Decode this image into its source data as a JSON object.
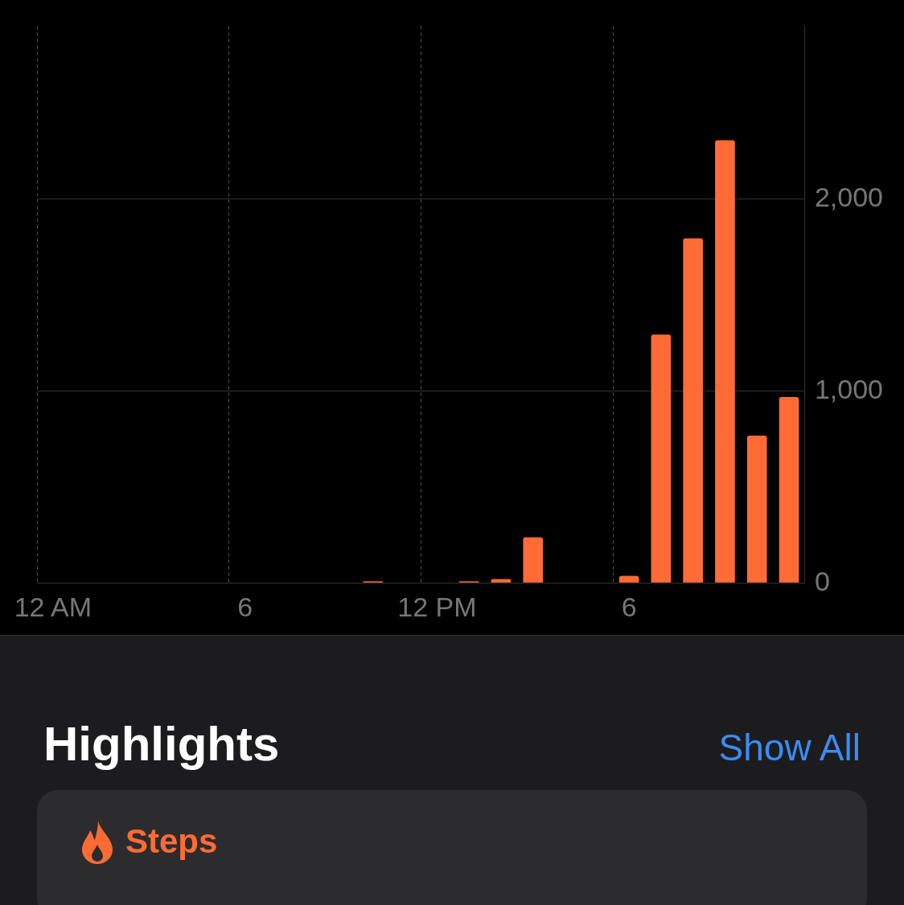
{
  "chart_data": {
    "type": "bar",
    "categories": [
      "12 AM",
      null,
      null,
      null,
      null,
      null,
      "6",
      null,
      null,
      null,
      null,
      null,
      "12 PM",
      null,
      null,
      null,
      null,
      null,
      "6",
      null,
      null,
      null,
      null,
      null
    ],
    "values": [
      0,
      0,
      0,
      0,
      0,
      0,
      0,
      0,
      0,
      0,
      8,
      0,
      0,
      8,
      20,
      237,
      0,
      0,
      36,
      1293,
      1795,
      2305,
      767,
      968
    ],
    "color": "#ff6b35",
    "ylim": [
      0,
      2900
    ],
    "yticks": [
      0,
      {
        "value": 1000,
        "label": "1,000"
      },
      {
        "value": 2000,
        "label": "2,000"
      }
    ],
    "grid": true,
    "legend": false,
    "annotations": [
      "Highlights",
      "Show All",
      "Steps"
    ]
  }
}
